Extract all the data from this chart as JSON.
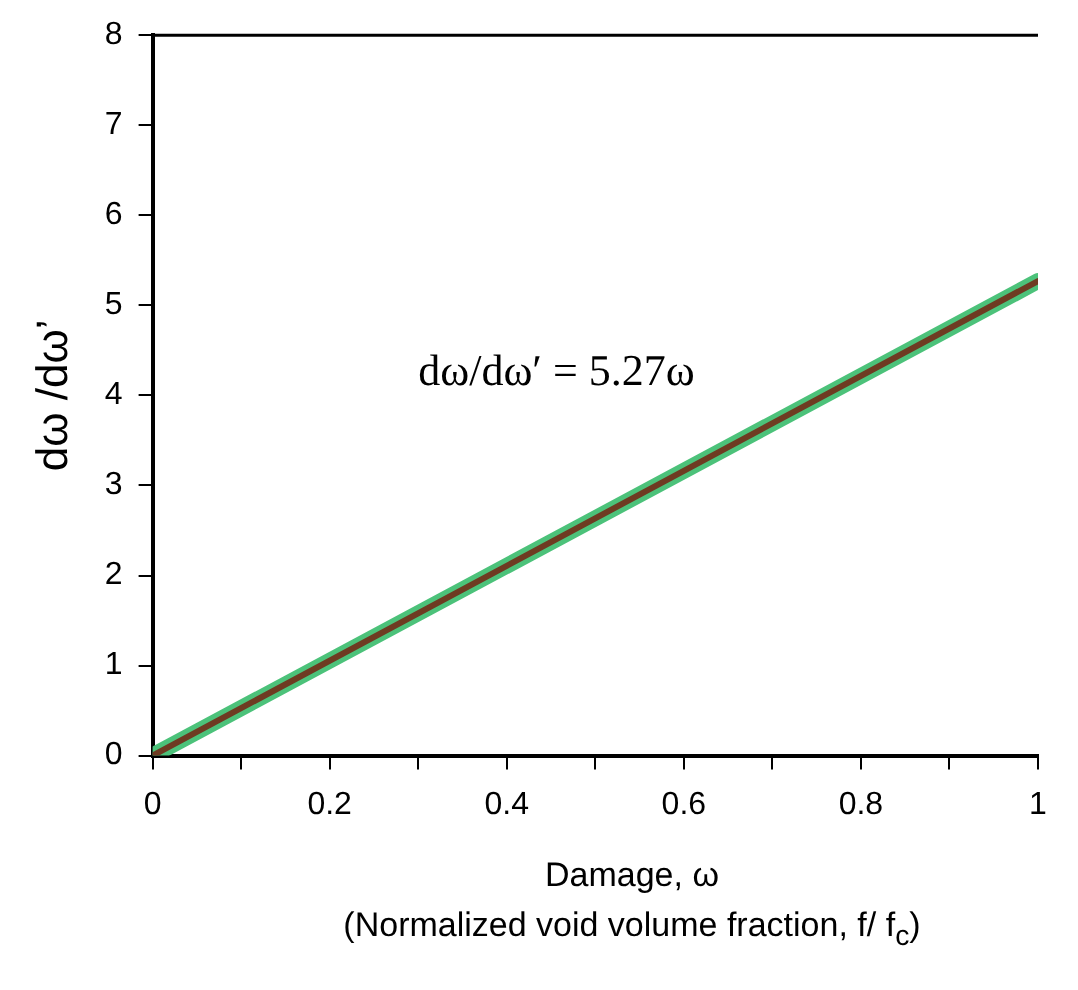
{
  "chart_data": {
    "type": "line",
    "ylabel": "dω /dω’",
    "xlabel": "Damage, ω\n(Normalized void volume fraction, f/ f$_{c}$)",
    "annotations": [
      "dω/dω′ = 5.27ω"
    ],
    "series": [
      {
        "color": "#4cc27a",
        "values": [
          0,
          5.27
        ]
      },
      {
        "color": "#6e3b22",
        "values": [
          0,
          5.27
        ]
      }
    ],
    "x": [
      0,
      1
    ],
    "xlim": [
      0,
      1
    ],
    "xticks": [
      0,
      {
        "value": 0.1,
        "label": null
      },
      0.2,
      {
        "value": 0.3,
        "label": null
      },
      0.4,
      {
        "value": 0.5,
        "label": null
      },
      0.6,
      {
        "value": 0.7,
        "label": null
      },
      0.8,
      {
        "value": 0.9,
        "label": null
      },
      1
    ],
    "ylim": [
      0,
      8
    ],
    "yticks": [
      0,
      1,
      2,
      3,
      4,
      5,
      6,
      7,
      8
    ],
    "grid": false,
    "legend": false,
    "marker": "none",
    "line_style": "solid"
  }
}
